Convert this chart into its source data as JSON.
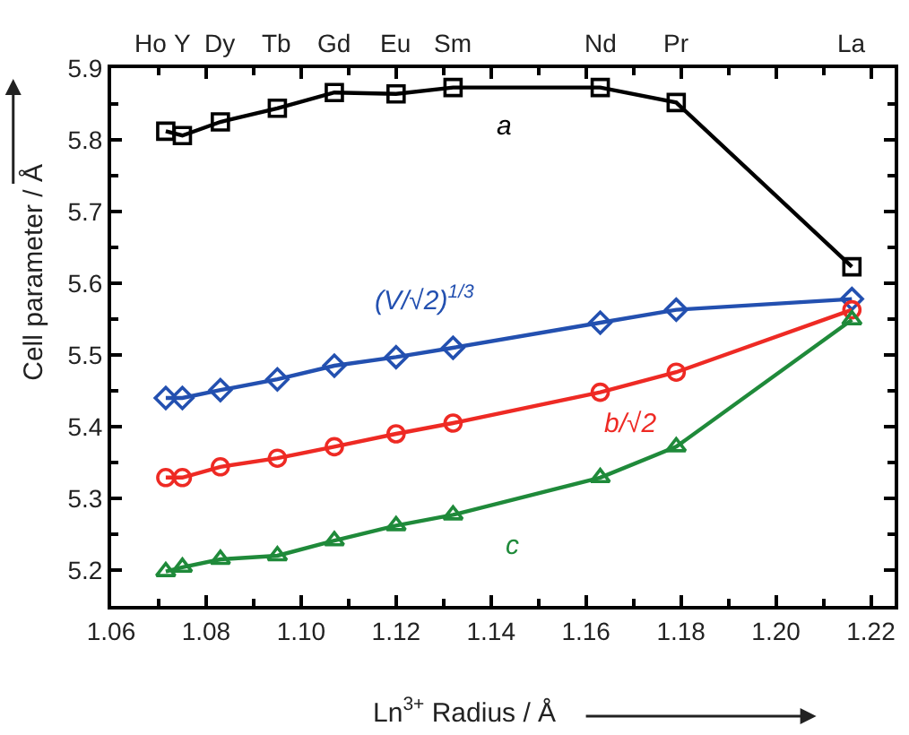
{
  "chart_data": {
    "type": "line",
    "xlabel": "Ln$^{3+}$ Radius / Å",
    "ylabel": "Cell parameter / Å",
    "x": [
      1.0715,
      1.075,
      1.083,
      1.095,
      1.107,
      1.12,
      1.132,
      1.163,
      1.179,
      1.216
    ],
    "series": [
      {
        "name": "a",
        "color": "#000000",
        "marker": "square",
        "values": [
          5.812,
          5.806,
          5.825,
          5.844,
          5.866,
          5.864,
          5.873,
          5.873,
          5.852,
          5.623
        ]
      },
      {
        "name": "(V/√2)$^{1/3}$",
        "color": "#2350b0",
        "marker": "diamond",
        "values": [
          5.44,
          5.44,
          5.451,
          5.466,
          5.485,
          5.497,
          5.51,
          5.545,
          5.563,
          5.578
        ]
      },
      {
        "name": "b/√2",
        "color": "#ee2a24",
        "marker": "circle",
        "values": [
          5.329,
          5.329,
          5.344,
          5.356,
          5.372,
          5.39,
          5.405,
          5.448,
          5.476,
          5.563
        ]
      },
      {
        "name": "c",
        "color": "#1f8a3a",
        "marker": "triangle",
        "values": [
          5.198,
          5.204,
          5.215,
          5.22,
          5.241,
          5.262,
          5.277,
          5.329,
          5.372,
          5.549
        ]
      }
    ],
    "annotations": [
      "Ho",
      "Y",
      "Dy",
      "Tb",
      "Gd",
      "Eu",
      "Sm",
      "Nd",
      "Pr",
      "La"
    ],
    "xlim": [
      1.06,
      1.225
    ],
    "xticks": [
      1.06,
      1.08,
      {
        "value": 1.1,
        "label": "1.10"
      },
      1.12,
      1.14,
      1.16,
      1.18,
      {
        "value": 1.2,
        "label": "1.20"
      },
      1.22
    ],
    "ylim": [
      5.15,
      5.9
    ],
    "yticks": [
      5.2,
      5.3,
      5.4,
      5.5,
      5.6,
      5.7,
      5.8,
      5.9
    ]
  }
}
